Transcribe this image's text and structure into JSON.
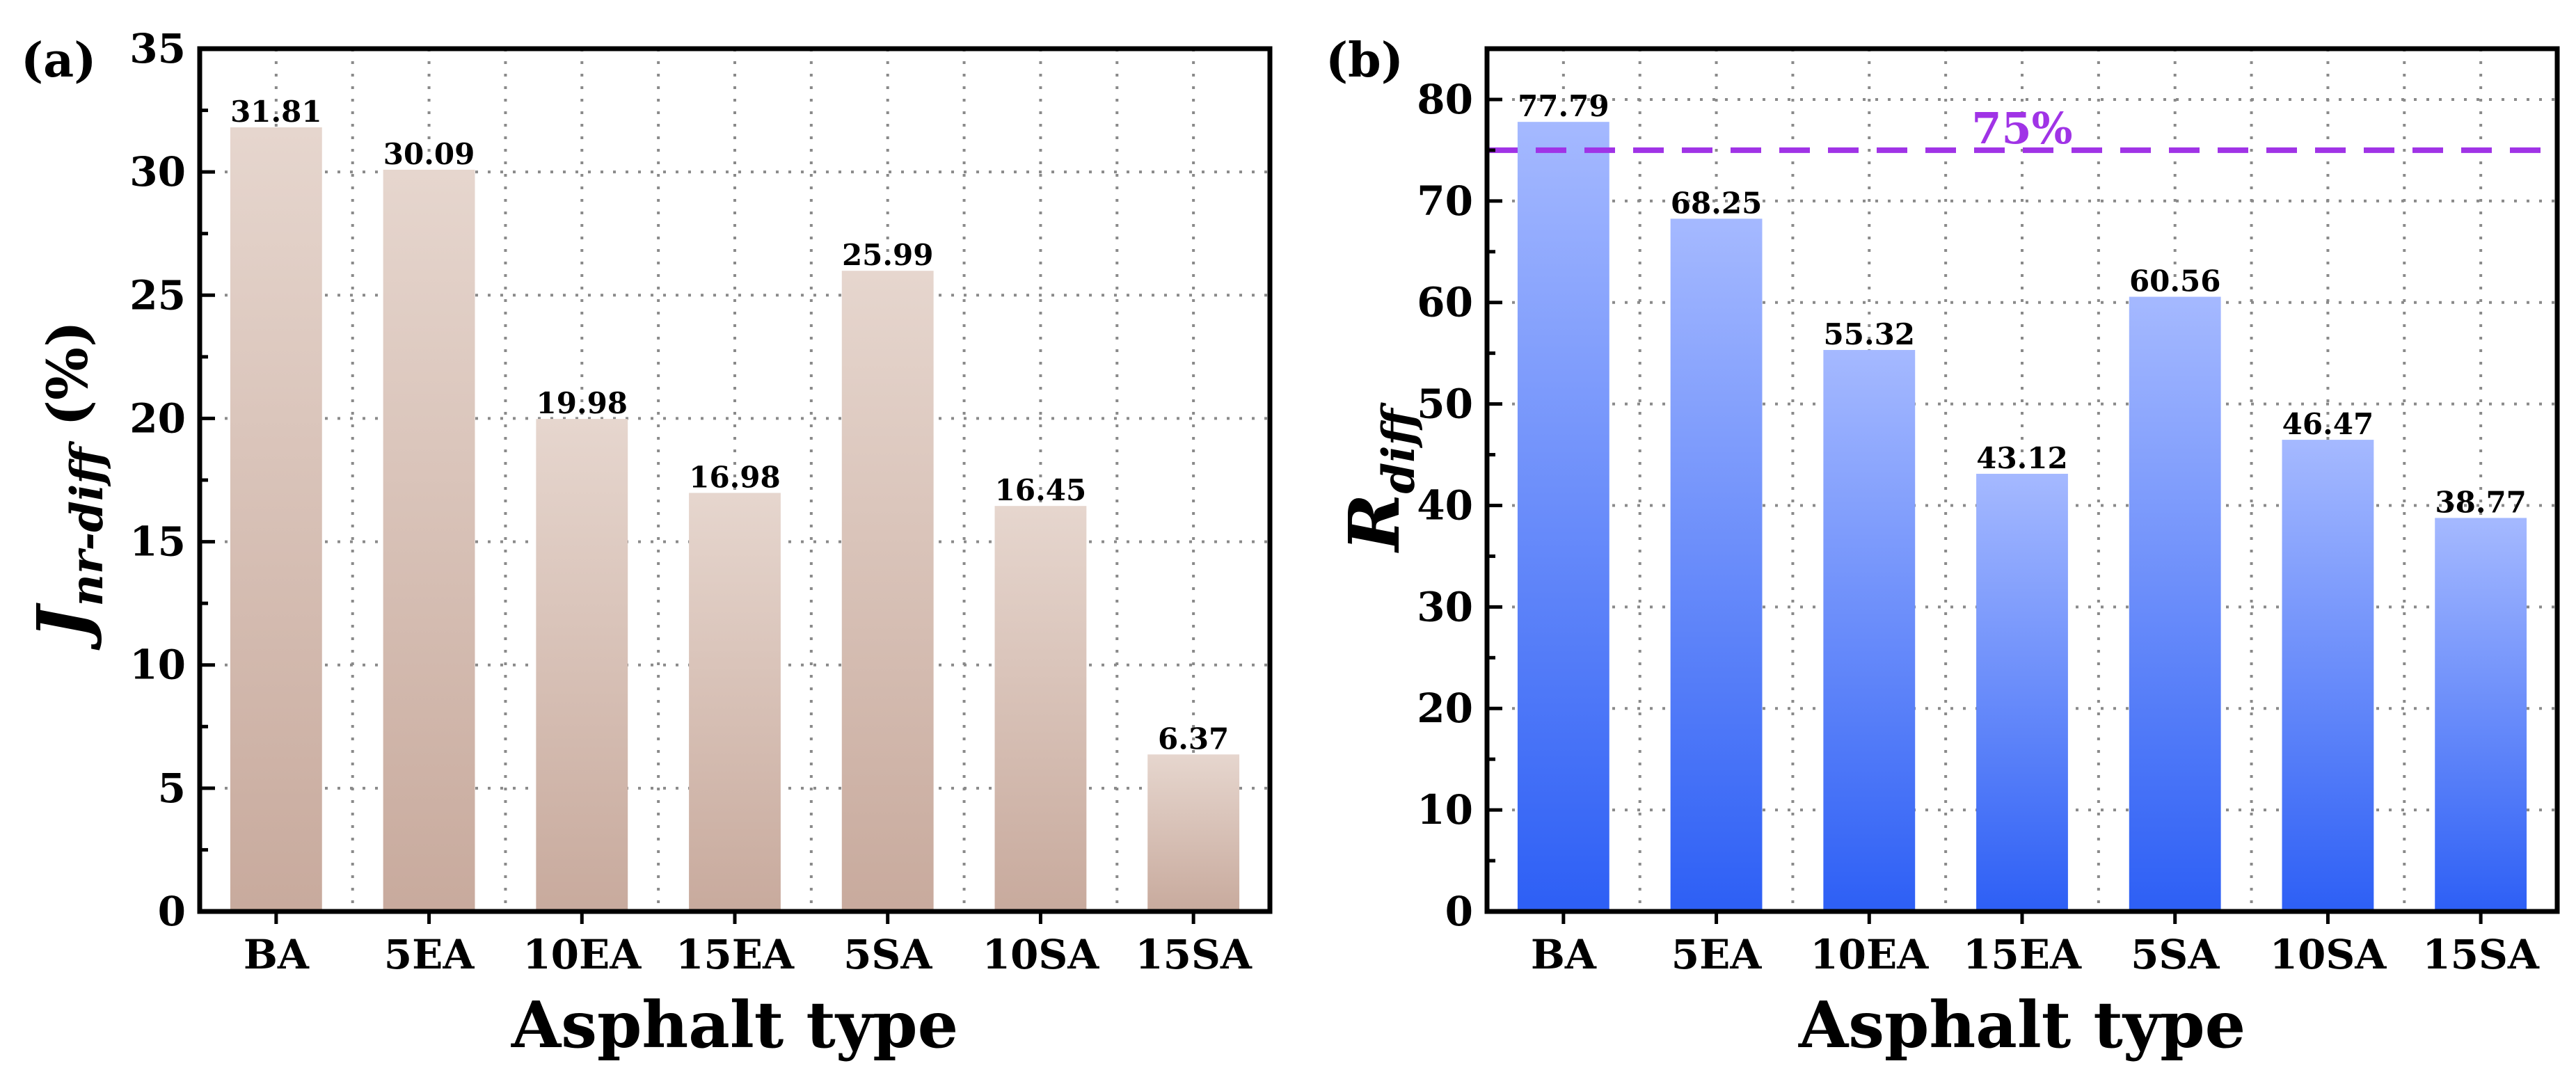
{
  "chart_data": [
    {
      "panel": "(a)",
      "type": "bar",
      "categories": [
        "BA",
        "5EA",
        "10EA",
        "15EA",
        "5SA",
        "10SA",
        "15SA"
      ],
      "values": [
        31.81,
        30.09,
        19.98,
        16.98,
        25.99,
        16.45,
        6.37
      ],
      "value_labels": [
        "31.81",
        "30.09",
        "19.98",
        "16.98",
        "25.99",
        "16.45",
        "6.37"
      ],
      "xlabel": "Asphalt type",
      "ylabel_main": "J",
      "ylabel_sub": "nr-diff",
      "ylabel_unit": "(%)",
      "ylim": [
        0,
        35
      ],
      "yticks": [
        0,
        5,
        10,
        15,
        20,
        25,
        30,
        35
      ],
      "ytick_labels": [
        "0",
        "5",
        "10",
        "15",
        "20",
        "25",
        "30",
        "35"
      ],
      "grid": true,
      "bar_color_top": "#e6d6ce",
      "bar_color_bottom": "#c8aa9d"
    },
    {
      "panel": "(b)",
      "type": "bar",
      "categories": [
        "BA",
        "5EA",
        "10EA",
        "15EA",
        "5SA",
        "10SA",
        "15SA"
      ],
      "values": [
        77.79,
        68.25,
        55.32,
        43.12,
        60.56,
        46.47,
        38.77
      ],
      "value_labels": [
        "77.79",
        "68.25",
        "55.32",
        "43.12",
        "60.56",
        "46.47",
        "38.77"
      ],
      "xlabel": "Asphalt type",
      "ylabel_main": "R",
      "ylabel_sub": "diff",
      "ylim": [
        0,
        85
      ],
      "yticks": [
        0,
        10,
        20,
        30,
        40,
        50,
        60,
        70,
        80
      ],
      "ytick_labels": [
        "0",
        "10",
        "20",
        "30",
        "40",
        "50",
        "60",
        "70",
        "80"
      ],
      "grid": true,
      "reference_line": {
        "value": 75,
        "label": "75%",
        "color": "#a033e6"
      },
      "bar_color_top": "#a5b9ff",
      "bar_color_bottom": "#2d5ff5"
    }
  ]
}
